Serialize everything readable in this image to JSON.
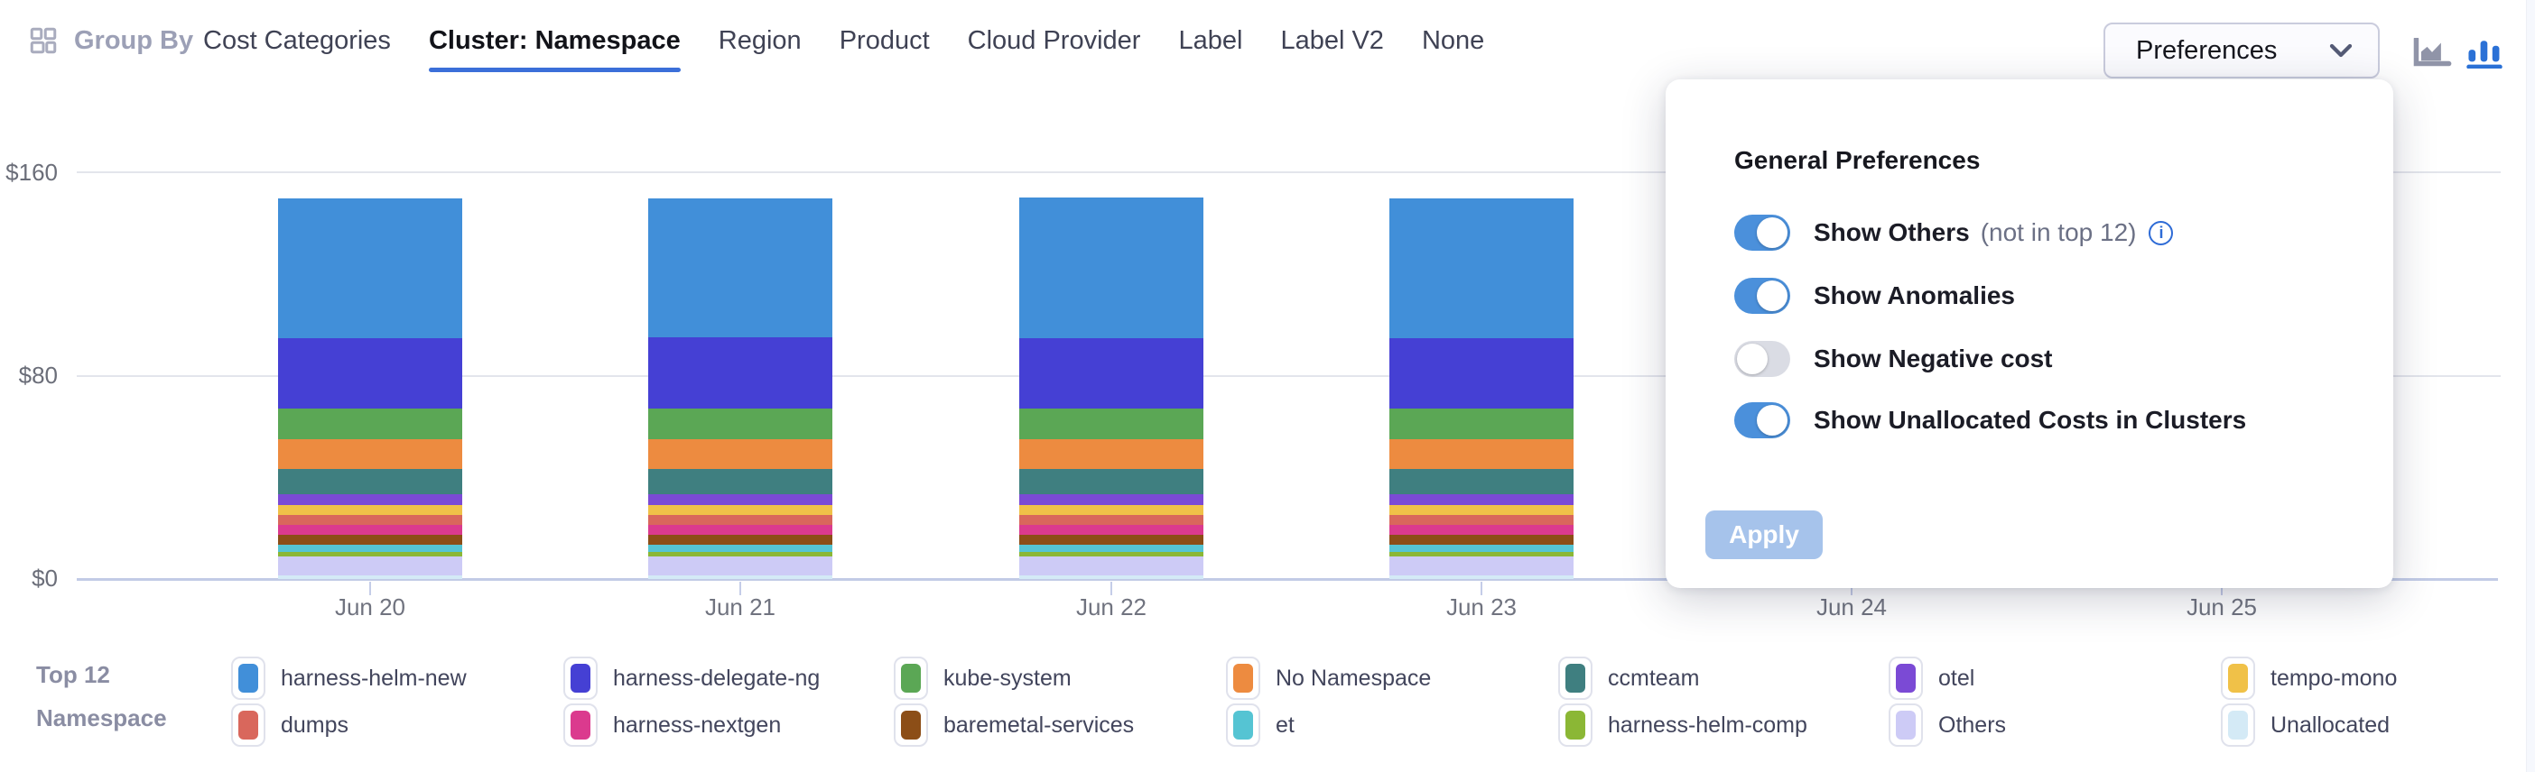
{
  "header": {
    "group_by_label": "Group By",
    "tabs": [
      {
        "label": "Cost Categories",
        "active": false
      },
      {
        "label": "Cluster: Namespace",
        "active": true
      },
      {
        "label": "Region",
        "active": false
      },
      {
        "label": "Product",
        "active": false
      },
      {
        "label": "Cloud Provider",
        "active": false
      },
      {
        "label": "Label",
        "active": false
      },
      {
        "label": "Label V2",
        "active": false
      },
      {
        "label": "None",
        "active": false
      }
    ],
    "preferences_button_label": "Preferences",
    "chart_type_toggle": {
      "area_chart_selected": false,
      "bar_chart_selected": true
    }
  },
  "chart_data": {
    "type": "bar",
    "stacked": true,
    "categories": [
      "Jun 20",
      "Jun 21",
      "Jun 22",
      "Jun 23",
      "Jun 24",
      "Jun 25"
    ],
    "ytick_labels": [
      "$160",
      "$80",
      "$0"
    ],
    "ylim": [
      0,
      160
    ],
    "currency": "USD",
    "grid": true,
    "note": "Bars for Jun 24 and Jun 25 are obscured by the open Preferences popover; null = not visible",
    "series": [
      {
        "name": "harness-helm-new",
        "color": "#418FD9",
        "values": [
          55,
          54.6,
          55.4,
          55,
          null,
          null
        ]
      },
      {
        "name": "harness-delegate-ng",
        "color": "#4540D4",
        "values": [
          28,
          28.2,
          27.8,
          28,
          null,
          null
        ]
      },
      {
        "name": "kube-system",
        "color": "#5BA755",
        "values": [
          12,
          12,
          12,
          12,
          null,
          null
        ]
      },
      {
        "name": "No Namespace",
        "color": "#ED8B40",
        "values": [
          11.8,
          11.8,
          11.8,
          11.8,
          null,
          null
        ]
      },
      {
        "name": "ccmteam",
        "color": "#3F7F80",
        "values": [
          9.7,
          9.7,
          9.7,
          9.7,
          null,
          null
        ]
      },
      {
        "name": "otel",
        "color": "#7B4AD5",
        "values": [
          4.5,
          4.5,
          4.5,
          4.5,
          null,
          null
        ]
      },
      {
        "name": "tempo-mono",
        "color": "#F0C148",
        "values": [
          3.8,
          3.8,
          3.8,
          3.8,
          null,
          null
        ]
      },
      {
        "name": "dumps",
        "color": "#D9675C",
        "values": [
          3.9,
          3.9,
          3.9,
          3.9,
          null,
          null
        ]
      },
      {
        "name": "harness-nextgen",
        "color": "#DB3A8E",
        "values": [
          3.9,
          3.9,
          3.9,
          3.9,
          null,
          null
        ]
      },
      {
        "name": "baremetal-services",
        "color": "#8C4E17",
        "values": [
          4,
          4,
          4,
          4,
          null,
          null
        ]
      },
      {
        "name": "et",
        "color": "#55C4D3",
        "values": [
          2.8,
          2.8,
          2.8,
          2.8,
          null,
          null
        ]
      },
      {
        "name": "harness-helm-comp",
        "color": "#8BB735",
        "values": [
          1.9,
          1.9,
          1.9,
          1.9,
          null,
          null
        ]
      },
      {
        "name": "Others",
        "color": "#CDCBF6",
        "values": [
          7.5,
          7.5,
          7.5,
          7.5,
          null,
          null
        ]
      },
      {
        "name": "Unallocated",
        "color": "#D4EAF6",
        "values": [
          1.3,
          1.3,
          1.3,
          1.3,
          null,
          null
        ]
      }
    ]
  },
  "legend": {
    "title_line1": "Top 12",
    "title_line2": "Namespace",
    "items": [
      {
        "label": "harness-helm-new",
        "color": "#418FD9"
      },
      {
        "label": "harness-delegate-ng",
        "color": "#4540D4"
      },
      {
        "label": "kube-system",
        "color": "#5BA755"
      },
      {
        "label": "No Namespace",
        "color": "#ED8B40"
      },
      {
        "label": "ccmteam",
        "color": "#3F7F80"
      },
      {
        "label": "otel",
        "color": "#7B4AD5"
      },
      {
        "label": "tempo-mono",
        "color": "#F0C148"
      },
      {
        "label": "dumps",
        "color": "#D9675C"
      },
      {
        "label": "harness-nextgen",
        "color": "#DB3A8E"
      },
      {
        "label": "baremetal-services",
        "color": "#8C4E17"
      },
      {
        "label": "et",
        "color": "#55C4D3"
      },
      {
        "label": "harness-helm-comp",
        "color": "#8BB735"
      },
      {
        "label": "Others",
        "color": "#CDCBF6"
      },
      {
        "label": "Unallocated",
        "color": "#D4EAF6"
      }
    ]
  },
  "preferences_panel": {
    "title": "General Preferences",
    "toggles": [
      {
        "label": "Show Others",
        "suffix": "(not in top 12)",
        "info_icon": true,
        "on": true
      },
      {
        "label": "Show Anomalies",
        "info_icon": false,
        "on": true
      },
      {
        "label": "Show Negative cost",
        "info_icon": false,
        "on": false
      },
      {
        "label": "Show Unallocated Costs in Clusters",
        "info_icon": false,
        "on": true
      }
    ],
    "apply_label": "Apply"
  },
  "colors": {
    "accent_blue": "#3B6FD9",
    "toggle_on": "#4B90DB",
    "toggle_off": "#DADCE4",
    "apply_disabled_bg": "#A6C3EB",
    "axis_line": "#C2CBE6",
    "gridline": "#E3E5EC",
    "tab_text": "#3F4254",
    "muted_text": "#9CA0B6"
  }
}
